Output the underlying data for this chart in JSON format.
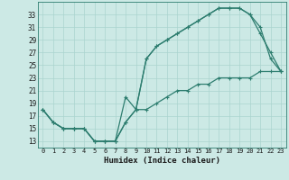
{
  "title": "",
  "xlabel": "Humidex (Indice chaleur)",
  "bg_color": "#cce9e5",
  "grid_color": "#aad4cf",
  "line_color": "#2d7d6f",
  "xlim": [
    -0.5,
    23.5
  ],
  "ylim": [
    12,
    35
  ],
  "xticks": [
    0,
    1,
    2,
    3,
    4,
    5,
    6,
    7,
    8,
    9,
    10,
    11,
    12,
    13,
    14,
    15,
    16,
    17,
    18,
    19,
    20,
    21,
    22,
    23
  ],
  "yticks": [
    13,
    15,
    17,
    19,
    21,
    23,
    25,
    27,
    29,
    31,
    33
  ],
  "line1_x": [
    0,
    1,
    2,
    3,
    4,
    5,
    6,
    7,
    8,
    9,
    10,
    11,
    12,
    13,
    14,
    15,
    16,
    17,
    18,
    19,
    20,
    21,
    22,
    23
  ],
  "line1_y": [
    18,
    16,
    15,
    15,
    15,
    13,
    13,
    13,
    20,
    18,
    26,
    28,
    29,
    30,
    31,
    32,
    33,
    34,
    34,
    34,
    33,
    30,
    27,
    24
  ],
  "line2_x": [
    0,
    1,
    2,
    3,
    4,
    5,
    6,
    7,
    8,
    9,
    10,
    11,
    12,
    13,
    14,
    15,
    16,
    17,
    18,
    19,
    20,
    21,
    22,
    23
  ],
  "line2_y": [
    18,
    16,
    15,
    15,
    15,
    13,
    13,
    13,
    16,
    18,
    26,
    28,
    29,
    30,
    31,
    32,
    33,
    34,
    34,
    34,
    33,
    31,
    26,
    24
  ],
  "line3_x": [
    0,
    1,
    2,
    3,
    4,
    5,
    6,
    7,
    8,
    9,
    10,
    11,
    12,
    13,
    14,
    15,
    16,
    17,
    18,
    19,
    20,
    21,
    22,
    23
  ],
  "line3_y": [
    18,
    16,
    15,
    15,
    15,
    13,
    13,
    13,
    16,
    18,
    18,
    19,
    20,
    21,
    21,
    22,
    22,
    23,
    23,
    23,
    23,
    24,
    24,
    24
  ]
}
